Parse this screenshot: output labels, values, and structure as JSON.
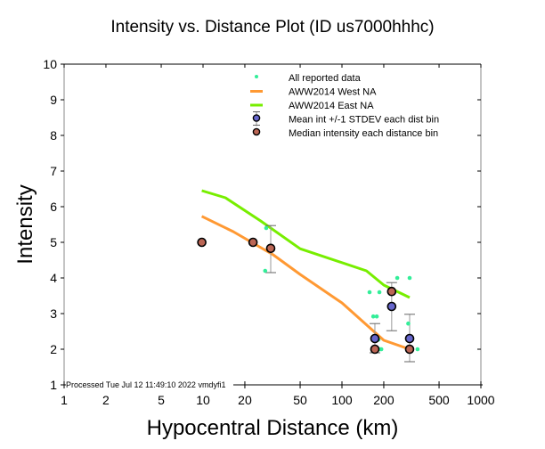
{
  "chart_data": {
    "type": "scatter",
    "title": "Intensity vs. Distance Plot (ID us7000hhhc)",
    "xlabel": "Hypocentral Distance (km)",
    "ylabel": "Intensity",
    "xscale": "log",
    "xlim": [
      1,
      1000
    ],
    "ylim": [
      1,
      10
    ],
    "xticks": [
      1,
      2,
      5,
      10,
      20,
      50,
      100,
      200,
      500,
      1000
    ],
    "xtick_labels": [
      "1",
      "2",
      "5",
      "10",
      "20",
      "50",
      "100",
      "200",
      "500",
      "1000"
    ],
    "yticks": [
      1,
      2,
      3,
      4,
      5,
      6,
      7,
      8,
      9,
      10
    ],
    "ytick_labels": [
      "1",
      "2",
      "3",
      "4",
      "5",
      "6",
      "7",
      "8",
      "9",
      "10"
    ],
    "grid": false,
    "legend_position": "top-right",
    "footer_note": "Processed Tue Jul 12 11:49:10 2022 vmdyfi1",
    "legend": [
      {
        "label": "All reported data",
        "kind": "dot",
        "color": "#33ee99"
      },
      {
        "label": "AWW2014 West NA",
        "kind": "line",
        "color": "#ff9933"
      },
      {
        "label": "AWW2014 East NA",
        "kind": "line",
        "color": "#77ee00"
      },
      {
        "label": "Mean int +/-1 STDEV each dist bin",
        "kind": "mean",
        "color": "#6666cc"
      },
      {
        "label": "Median intensity each distance bin",
        "kind": "median",
        "color": "#bb6655"
      }
    ],
    "series": [
      {
        "name": "All reported data",
        "type": "scatter",
        "color": "#33ee99",
        "points": [
          [
            22.0,
            5.0
          ],
          [
            28.5,
            5.4
          ],
          [
            28.0,
            4.2
          ],
          [
            158,
            3.6
          ],
          [
            168,
            2.92
          ],
          [
            178,
            2.92
          ],
          [
            183,
            2.27
          ],
          [
            178,
            2.0
          ],
          [
            183,
            2.0
          ],
          [
            188,
            2.0
          ],
          [
            192,
            2.0
          ],
          [
            250,
            4.0
          ],
          [
            307,
            4.0
          ],
          [
            300,
            2.72
          ],
          [
            350,
            2.0
          ],
          [
            186,
            3.6
          ]
        ]
      },
      {
        "name": "AWW2014 West NA",
        "type": "line",
        "color": "#ff9933",
        "points": [
          [
            9.8,
            5.73
          ],
          [
            16.5,
            5.3
          ],
          [
            32,
            4.65
          ],
          [
            50,
            4.1
          ],
          [
            100,
            3.3
          ],
          [
            200,
            2.25
          ],
          [
            307,
            2.0
          ]
        ]
      },
      {
        "name": "AWW2014 East NA",
        "type": "line",
        "color": "#77ee00",
        "points": [
          [
            9.8,
            6.45
          ],
          [
            14.5,
            6.25
          ],
          [
            26,
            5.6
          ],
          [
            50,
            4.82
          ],
          [
            150,
            4.2
          ],
          [
            200,
            3.8
          ],
          [
            307,
            3.45
          ]
        ]
      },
      {
        "name": "Mean int +/-1 STDEV each dist bin",
        "type": "errorbar",
        "color": "#6666cc",
        "points": [
          {
            "x": 172.6,
            "y": 2.3,
            "lo": 1.9,
            "hi": 2.72
          },
          {
            "x": 228,
            "y": 3.2,
            "lo": 2.52,
            "hi": 3.87
          },
          {
            "x": 307,
            "y": 2.3,
            "lo": 1.65,
            "hi": 2.98
          }
        ]
      },
      {
        "name": "Median intensity each distance bin",
        "type": "scatter",
        "color": "#bb6655",
        "points": [
          [
            9.8,
            5.0
          ],
          [
            22.9,
            5.0
          ],
          [
            30.7,
            4.83
          ],
          [
            172.6,
            2.0
          ],
          [
            228,
            3.62
          ],
          [
            307,
            2.0
          ]
        ]
      },
      {
        "name": "Mean error bar for 30.7 km bin",
        "type": "errorbar-only",
        "color": "#888888",
        "points": [
          {
            "x": 30.7,
            "lo": 4.15,
            "hi": 5.47
          }
        ]
      }
    ]
  }
}
